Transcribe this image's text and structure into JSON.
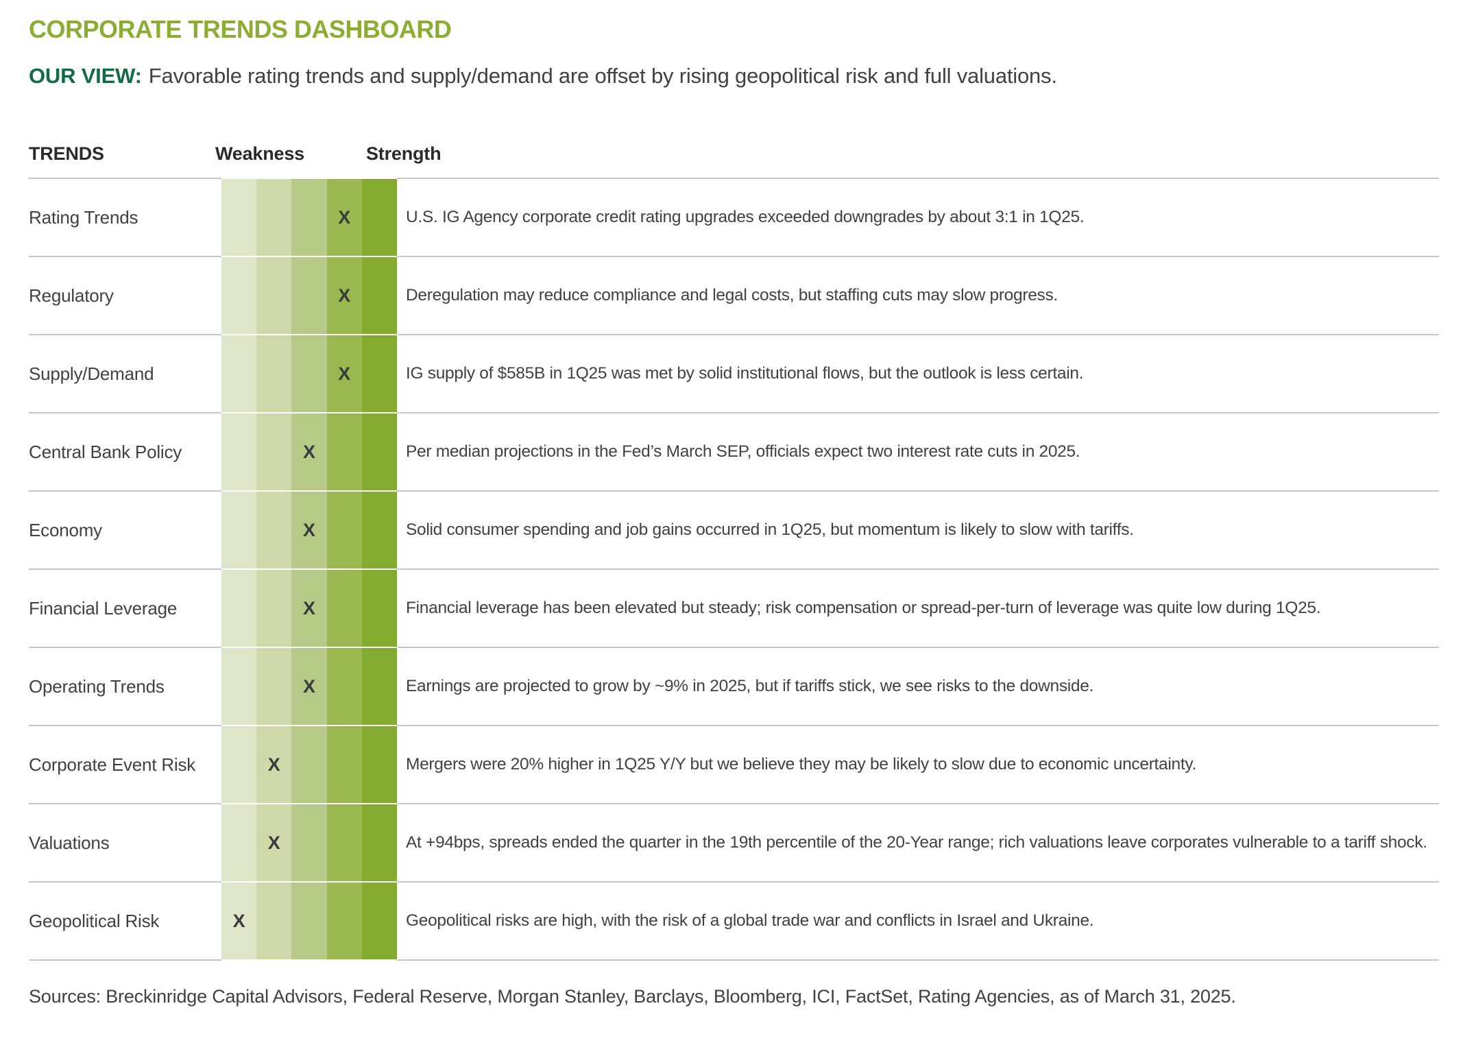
{
  "page": {
    "title": "CORPORATE TRENDS DASHBOARD",
    "view_label": "OUR VIEW:",
    "view_text": "Favorable rating trends and supply/demand are offset by rising geopolitical risk and full valuations.",
    "sources": "Sources: Breckinridge Capital Advisors, Federal Reserve, Morgan Stanley, Barclays, Bloomberg, ICI, FactSet, Rating Agencies, as of March 31, 2025."
  },
  "table": {
    "headers": {
      "trends": "TRENDS",
      "weakness": "Weakness",
      "strength": "Strength"
    },
    "scale": {
      "levels": 5,
      "marker": "X",
      "colors": [
        "#dde6c9",
        "#cdd9a9",
        "#b7c986",
        "#9ab750",
        "#82ab2f"
      ]
    },
    "rows": [
      {
        "label": "Rating Trends",
        "level": 4,
        "description": "U.S. IG Agency corporate credit rating upgrades exceeded downgrades by about 3:1 in 1Q25."
      },
      {
        "label": "Regulatory",
        "level": 4,
        "description": "Deregulation may reduce compliance and legal costs, but staffing cuts may slow progress."
      },
      {
        "label": "Supply/Demand",
        "level": 4,
        "description": "IG supply of $585B in 1Q25 was met by solid institutional flows, but the outlook is less certain."
      },
      {
        "label": "Central Bank Policy",
        "level": 3,
        "description": "Per median projections in the Fed’s March SEP, officials expect two interest rate cuts in 2025."
      },
      {
        "label": "Economy",
        "level": 3,
        "description": "Solid consumer spending and job gains occurred in 1Q25, but momentum is likely to slow with tariffs."
      },
      {
        "label": "Financial Leverage",
        "level": 3,
        "description": "Financial leverage has been elevated but steady; risk compensation or spread-per-turn of leverage was quite low during 1Q25."
      },
      {
        "label": "Operating Trends",
        "level": 3,
        "description": "Earnings are projected to grow by ~9% in 2025, but if tariffs stick, we see risks to the downside."
      },
      {
        "label": "Corporate Event Risk",
        "level": 2,
        "description": "Mergers were 20% higher in 1Q25 Y/Y but we believe they may be likely to slow due to economic uncertainty."
      },
      {
        "label": "Valuations",
        "level": 2,
        "description": "At +94bps, spreads ended the quarter in the 19th percentile of the 20-Year range; rich valuations leave corporates vulnerable to a tariff shock."
      },
      {
        "label": "Geopolitical Risk",
        "level": 1,
        "description": "Geopolitical risks are high, with the risk of a global trade war and conflicts in Israel and Ukraine."
      }
    ]
  },
  "chart_data": {
    "type": "table",
    "title": "CORPORATE TRENDS DASHBOARD",
    "subtitle": "OUR VIEW: Favorable rating trends and supply/demand are offset by rising geopolitical risk and full valuations.",
    "scale": {
      "min": 1,
      "max": 5,
      "weak_end_label": "Weakness",
      "strong_end_label": "Strength"
    },
    "categories": [
      "Rating Trends",
      "Regulatory",
      "Supply/Demand",
      "Central Bank Policy",
      "Economy",
      "Financial Leverage",
      "Operating Trends",
      "Corporate Event Risk",
      "Valuations",
      "Geopolitical Risk"
    ],
    "ratings": [
      4,
      4,
      4,
      3,
      3,
      3,
      3,
      2,
      2,
      1
    ],
    "annotations": [
      "U.S. IG Agency corporate credit rating upgrades exceeded downgrades by about 3:1 in 1Q25.",
      "Deregulation may reduce compliance and legal costs, but staffing cuts may slow progress.",
      "IG supply of $585B in 1Q25 was met by solid institutional flows, but the outlook is less certain.",
      "Per median projections in the Fed’s March SEP, officials expect two interest rate cuts in 2025.",
      "Solid consumer spending and job gains occurred in 1Q25, but momentum is likely to slow with tariffs.",
      "Financial leverage has been elevated but steady; risk compensation or spread-per-turn of leverage was quite low during 1Q25.",
      "Earnings are projected to grow by ~9% in 2025, but if tariffs stick, we see risks to the downside.",
      "Mergers were 20% higher in 1Q25 Y/Y but we believe they may be likely to slow due to economic uncertainty.",
      "At +94bps, spreads ended the quarter in the 19th percentile of the 20-Year range; rich valuations leave corporates vulnerable to a tariff shock.",
      "Geopolitical risks are high, with the risk of a global trade war and conflicts in Israel and Ukraine."
    ],
    "source_note": "Sources: Breckinridge Capital Advisors, Federal Reserve, Morgan Stanley, Barclays, Bloomberg, ICI, FactSet, Rating Agencies, as of March 31, 2025."
  },
  "colors": {
    "title_green": "#8cad33",
    "view_green": "#146b43",
    "body_text": "#414042",
    "header_text": "#2b2a29",
    "grid_line": "#c8c8c8",
    "marker": "#3a3a3a"
  }
}
